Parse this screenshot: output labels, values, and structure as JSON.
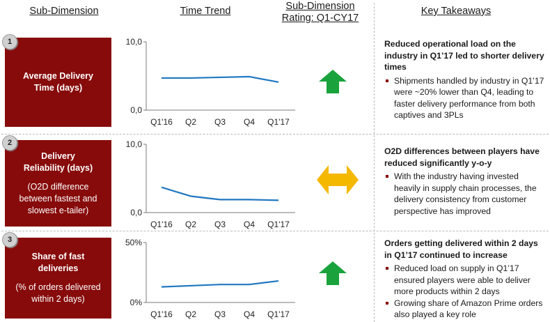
{
  "headers": {
    "sub_dimension": "Sub-Dimension",
    "time_trend": "Time Trend",
    "rating_line1": "Sub-Dimension",
    "rating_line2": "Rating: Q1-CY17",
    "key_takeaways": "Key Takeaways"
  },
  "rows": [
    {
      "number": "1",
      "title": "Average Delivery Time (days)",
      "subtitle": "",
      "rating": "up",
      "rating_color": "#1aa33c",
      "takeaway_title": "Reduced operational load on the industry in Q1’17  led to shorter delivery times",
      "bullets": [
        "Shipments handled by industry in Q1’17 were ~20% lower than Q4, leading to faster delivery performance from both captives and 3PLs"
      ]
    },
    {
      "number": "2",
      "title": "Delivery Reliability (days)",
      "subtitle": "(O2D difference between fastest and slowest e-tailer)",
      "rating": "neutral",
      "rating_color": "#f5b800",
      "takeaway_title": "O2D differences between players have reduced significantly y-o-y",
      "bullets": [
        "With the industry having invested heavily in supply chain processes, the delivery consistency from customer perspective has improved"
      ]
    },
    {
      "number": "3",
      "title": "Share of fast deliveries",
      "subtitle": "(% of orders delivered within 2 days)",
      "rating": "up",
      "rating_color": "#1aa33c",
      "takeaway_title": "Orders getting delivered within 2 days in Q1’17 continued to increase",
      "bullets": [
        "Reduced load on supply in Q1’17 ensured players were able to deliver more products within 2 days",
        "Growing share of Amazon Prime orders also played a key role"
      ]
    }
  ],
  "chart_data": [
    {
      "type": "line",
      "categories": [
        "Q1'16",
        "Q2",
        "Q3",
        "Q4",
        "Q1'17"
      ],
      "values": [
        4.7,
        4.7,
        4.8,
        4.9,
        4.1
      ],
      "ylim": [
        0,
        10
      ],
      "ytick_labels": [
        "0,0",
        "10,0"
      ],
      "line_color": "#1f77c0"
    },
    {
      "type": "line",
      "categories": [
        "Q1'16",
        "Q2",
        "Q3",
        "Q4",
        "Q1'17"
      ],
      "values": [
        3.7,
        2.4,
        1.9,
        1.9,
        1.8
      ],
      "ylim": [
        0,
        10
      ],
      "ytick_labels": [
        "0,0",
        "10,0"
      ],
      "line_color": "#1f77c0"
    },
    {
      "type": "line",
      "categories": [
        "Q1'16",
        "Q2",
        "Q3",
        "Q4",
        "Q1'17"
      ],
      "values": [
        13,
        14,
        15,
        15,
        18
      ],
      "ylim": [
        0,
        50
      ],
      "ytick_labels": [
        "0%",
        "50%"
      ],
      "line_color": "#1f77c0"
    }
  ]
}
